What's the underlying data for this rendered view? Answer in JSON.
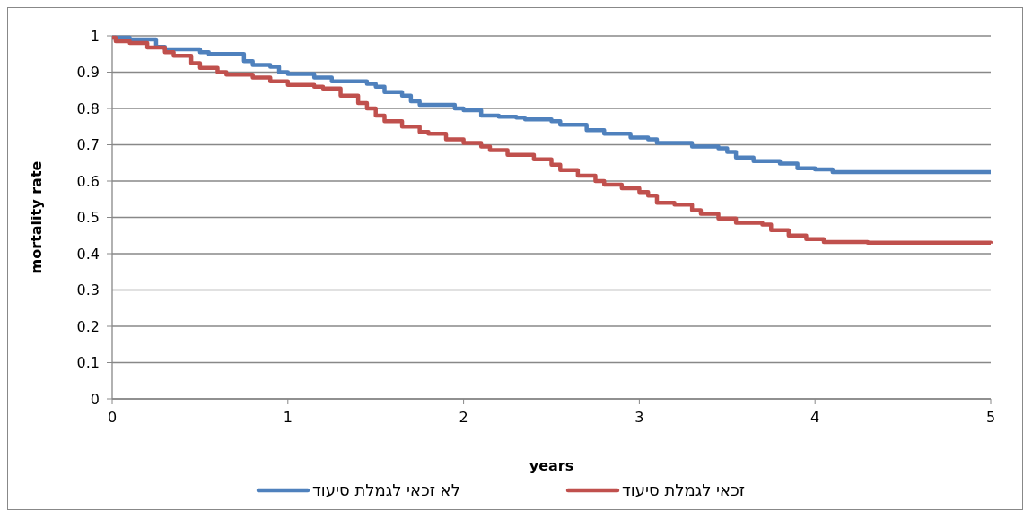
{
  "chart_data": {
    "type": "step",
    "xlabel": "years",
    "ylabel": "mortality rate",
    "xlim": [
      0,
      5
    ],
    "xticks": [
      0,
      1,
      2,
      3,
      4,
      5
    ],
    "ylim": [
      0,
      1
    ],
    "yticks": [
      0,
      0.1,
      0.2,
      0.3,
      0.4,
      0.5,
      0.6,
      0.7,
      0.8,
      0.9,
      1
    ],
    "grid": "y",
    "legend": "bottom",
    "marker": "none",
    "line_style": "solid",
    "series": [
      {
        "name": "לא זכאי לגמלת סיעוד",
        "color": "#4f81bd",
        "x": [
          0,
          0.1,
          0.25,
          0.3,
          0.5,
          0.55,
          0.75,
          0.8,
          0.9,
          0.95,
          1,
          1.15,
          1.25,
          1.45,
          1.5,
          1.55,
          1.65,
          1.7,
          1.75,
          1.95,
          2,
          2.1,
          2.2,
          2.3,
          2.35,
          2.5,
          2.55,
          2.7,
          2.8,
          2.95,
          3.05,
          3.1,
          3.3,
          3.45,
          3.5,
          3.55,
          3.65,
          3.8,
          3.9,
          4,
          4.1,
          5
        ],
        "values": [
          0.995,
          0.99,
          0.97,
          0.963,
          0.955,
          0.95,
          0.93,
          0.92,
          0.915,
          0.9,
          0.895,
          0.885,
          0.875,
          0.868,
          0.86,
          0.845,
          0.835,
          0.82,
          0.81,
          0.8,
          0.795,
          0.78,
          0.777,
          0.775,
          0.77,
          0.765,
          0.755,
          0.74,
          0.73,
          0.72,
          0.715,
          0.705,
          0.695,
          0.69,
          0.68,
          0.665,
          0.655,
          0.648,
          0.635,
          0.632,
          0.625,
          0.625
        ]
      },
      {
        "name": "זכאי לגמלת סיעוד",
        "color": "#c0504d",
        "x": [
          0,
          0.02,
          0.1,
          0.2,
          0.3,
          0.35,
          0.45,
          0.5,
          0.6,
          0.65,
          0.8,
          0.9,
          1,
          1.15,
          1.2,
          1.3,
          1.4,
          1.45,
          1.5,
          1.55,
          1.65,
          1.75,
          1.8,
          1.9,
          2,
          2.1,
          2.15,
          2.25,
          2.4,
          2.5,
          2.55,
          2.65,
          2.75,
          2.8,
          2.9,
          3,
          3.05,
          3.1,
          3.2,
          3.3,
          3.35,
          3.45,
          3.55,
          3.7,
          3.75,
          3.85,
          3.95,
          4.05,
          4.3,
          5
        ],
        "values": [
          0.995,
          0.985,
          0.98,
          0.968,
          0.955,
          0.945,
          0.925,
          0.912,
          0.9,
          0.893,
          0.885,
          0.875,
          0.865,
          0.86,
          0.855,
          0.835,
          0.815,
          0.8,
          0.78,
          0.765,
          0.75,
          0.735,
          0.73,
          0.715,
          0.705,
          0.695,
          0.685,
          0.672,
          0.66,
          0.645,
          0.63,
          0.615,
          0.6,
          0.59,
          0.58,
          0.57,
          0.56,
          0.54,
          0.535,
          0.52,
          0.51,
          0.497,
          0.485,
          0.48,
          0.465,
          0.45,
          0.44,
          0.432,
          0.43,
          0.428
        ]
      }
    ]
  }
}
